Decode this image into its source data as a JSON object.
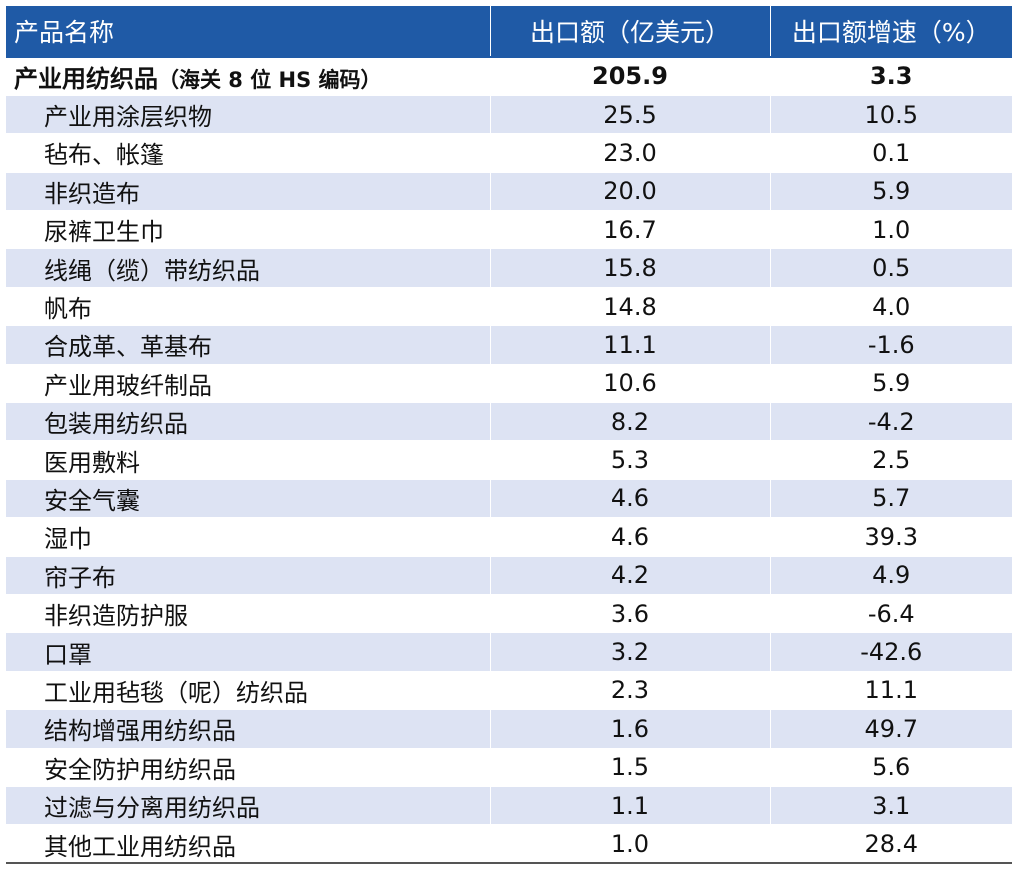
{
  "header": {
    "col_name": "产品名称",
    "col_value": "出口额（亿美元）",
    "col_growth": "出口额增速（%）"
  },
  "total": {
    "name": "产业用纺织品",
    "name_suffix": "（海关 8 位 HS 编码）",
    "value": "205.9",
    "growth": "3.3"
  },
  "rows": [
    {
      "name": "产业用涂层织物",
      "value": "25.5",
      "growth": "10.5"
    },
    {
      "name": "毡布、帐篷",
      "value": "23.0",
      "growth": "0.1"
    },
    {
      "name": "非织造布",
      "value": "20.0",
      "growth": "5.9"
    },
    {
      "name": "尿裤卫生巾",
      "value": "16.7",
      "growth": "1.0"
    },
    {
      "name": "线绳（缆）带纺织品",
      "value": "15.8",
      "growth": "0.5"
    },
    {
      "name": "帆布",
      "value": "14.8",
      "growth": "4.0"
    },
    {
      "name": "合成革、革基布",
      "value": "11.1",
      "growth": "-1.6"
    },
    {
      "name": "产业用玻纤制品",
      "value": "10.6",
      "growth": "5.9"
    },
    {
      "name": "包装用纺织品",
      "value": "8.2",
      "growth": "-4.2"
    },
    {
      "name": "医用敷料",
      "value": "5.3",
      "growth": "2.5"
    },
    {
      "name": "安全气囊",
      "value": "4.6",
      "growth": "5.7"
    },
    {
      "name": "湿巾",
      "value": "4.6",
      "growth": "39.3"
    },
    {
      "name": "帘子布",
      "value": "4.2",
      "growth": "4.9"
    },
    {
      "name": "非织造防护服",
      "value": "3.6",
      "growth": "-6.4"
    },
    {
      "name": "口罩",
      "value": "3.2",
      "growth": "-42.6"
    },
    {
      "name": "工业用毡毯（呢）纺织品",
      "value": "2.3",
      "growth": "11.1"
    },
    {
      "name": "结构增强用纺织品",
      "value": "1.6",
      "growth": "49.7"
    },
    {
      "name": "安全防护用纺织品",
      "value": "1.5",
      "growth": "5.6"
    },
    {
      "name": "过滤与分离用纺织品",
      "value": "1.1",
      "growth": "3.1"
    },
    {
      "name": "其他工业用纺织品",
      "value": "1.0",
      "growth": "28.4"
    }
  ],
  "colors": {
    "header_bg": "#1f5aa6",
    "row_shade": "#dde3f3"
  }
}
